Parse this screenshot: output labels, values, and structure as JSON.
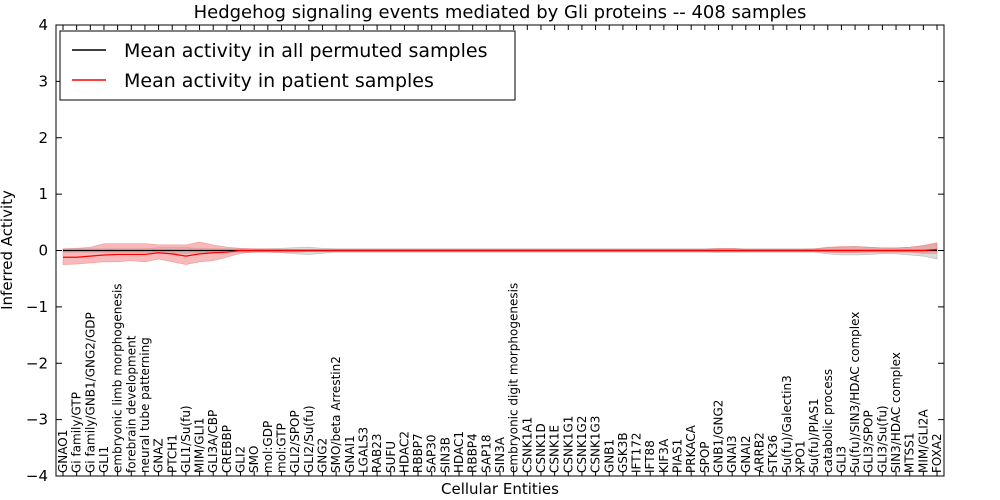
{
  "chart_data": {
    "type": "line",
    "title": "Hedgehog signaling events mediated by Gli proteins -- 408 samples",
    "xlabel": "Cellular Entities",
    "ylabel": "Inferred Activity",
    "ylim": [
      -4,
      4
    ],
    "yticks": [
      -4,
      -3,
      -2,
      -1,
      0,
      1,
      2,
      3,
      4
    ],
    "ytick_labels": [
      "−4",
      "−3",
      "−2",
      "−1",
      "0",
      "1",
      "2",
      "3",
      "4"
    ],
    "grid": false,
    "legend_position": "top-left",
    "categories": [
      "GNAO1",
      "Gi family/GTP",
      "Gi family/GNB1/GNG2/GDP",
      "GLI1",
      "embryonic limb morphogenesis",
      "forebrain development",
      "neural tube patterning",
      "GNAZ",
      "PTCH1",
      "GLI1/Su(fu)",
      "MIM/GLI1",
      "GLI3A/CBP",
      "CREBBP",
      "GLI2",
      "SMO",
      "mol:GDP",
      "mol:GTP",
      "GLI2/SPOP",
      "GLI2/Su(fu)",
      "GNG2",
      "SMO/beta Arrestin2",
      "GNAI1",
      "LGALS3",
      "RAB23",
      "SUFU",
      "HDAC2",
      "RBBP7",
      "SAP30",
      "SIN3B",
      "HDAC1",
      "RBBP4",
      "SAP18",
      "SIN3A",
      "embryonic digit morphogenesis",
      "CSNK1A1",
      "CSNK1D",
      "CSNK1E",
      "CSNK1G1",
      "CSNK1G2",
      "CSNK1G3",
      "GNB1",
      "GSK3B",
      "IFT172",
      "IFT88",
      "KIF3A",
      "PIAS1",
      "PRKACA",
      "SPOP",
      "GNB1/GNG2",
      "GNAI3",
      "GNAI2",
      "ARRB2",
      "STK36",
      "Su(fu)/Galectin3",
      "XPO1",
      "Su(fu)/PIAS1",
      "catabolic process",
      "GLI3",
      "Su(fu)/SIN3/HDAC complex",
      "GLI3/SPOP",
      "GLI3/Su(fu)",
      "SIN3/HDAC complex",
      "MTSS1",
      "MIM/GLI2A",
      "FOXA2"
    ],
    "series": [
      {
        "name": "Mean activity in all permuted samples",
        "color": "#000000",
        "values": [
          0.0,
          0.0,
          0.0,
          0.0,
          0.0,
          0.0,
          0.0,
          0.0,
          0.0,
          0.0,
          0.0,
          0.0,
          0.0,
          0.0,
          0.0,
          0.0,
          0.0,
          0.0,
          0.0,
          0.0,
          0.0,
          0.0,
          0.0,
          0.0,
          0.0,
          0.0,
          0.0,
          0.0,
          0.0,
          0.0,
          0.0,
          0.0,
          0.0,
          0.0,
          0.0,
          0.0,
          0.0,
          0.0,
          0.0,
          0.0,
          0.0,
          0.0,
          0.0,
          0.0,
          0.0,
          0.0,
          0.0,
          0.0,
          0.0,
          0.0,
          0.0,
          0.0,
          0.0,
          0.0,
          0.0,
          0.0,
          0.0,
          0.0,
          0.0,
          0.0,
          0.0,
          0.0,
          0.0,
          0.0,
          0.0
        ],
        "lower": [
          -0.03,
          -0.03,
          -0.03,
          -0.03,
          -0.03,
          -0.03,
          -0.03,
          -0.05,
          -0.05,
          -0.05,
          -0.04,
          -0.03,
          -0.03,
          -0.03,
          -0.03,
          -0.03,
          -0.04,
          -0.06,
          -0.07,
          -0.05,
          -0.03,
          -0.03,
          -0.03,
          -0.03,
          -0.03,
          -0.03,
          -0.03,
          -0.03,
          -0.03,
          -0.03,
          -0.03,
          -0.03,
          -0.03,
          -0.03,
          -0.03,
          -0.03,
          -0.03,
          -0.03,
          -0.03,
          -0.03,
          -0.03,
          -0.03,
          -0.03,
          -0.03,
          -0.03,
          -0.03,
          -0.03,
          -0.03,
          -0.04,
          -0.04,
          -0.03,
          -0.03,
          -0.03,
          -0.03,
          -0.03,
          -0.03,
          -0.06,
          -0.08,
          -0.08,
          -0.07,
          -0.06,
          -0.06,
          -0.08,
          -0.1,
          -0.15
        ],
        "upper": [
          0.03,
          0.03,
          0.03,
          0.03,
          0.03,
          0.03,
          0.03,
          0.05,
          0.05,
          0.05,
          0.04,
          0.03,
          0.03,
          0.03,
          0.03,
          0.03,
          0.04,
          0.05,
          0.06,
          0.04,
          0.03,
          0.03,
          0.03,
          0.03,
          0.03,
          0.03,
          0.03,
          0.03,
          0.03,
          0.03,
          0.03,
          0.03,
          0.03,
          0.03,
          0.03,
          0.03,
          0.03,
          0.03,
          0.03,
          0.03,
          0.03,
          0.03,
          0.03,
          0.03,
          0.03,
          0.03,
          0.03,
          0.03,
          0.04,
          0.04,
          0.03,
          0.03,
          0.03,
          0.03,
          0.03,
          0.03,
          0.05,
          0.06,
          0.07,
          0.06,
          0.05,
          0.05,
          0.06,
          0.08,
          0.12
        ]
      },
      {
        "name": "Mean activity in patient samples",
        "color": "#ff0000",
        "fill_color": "#f08080",
        "values": [
          -0.12,
          -0.12,
          -0.1,
          -0.08,
          -0.07,
          -0.07,
          -0.07,
          -0.04,
          -0.06,
          -0.1,
          -0.06,
          -0.04,
          -0.03,
          0.0,
          0.0,
          0.0,
          0.0,
          0.0,
          0.0,
          0.0,
          0.0,
          0.0,
          0.0,
          0.0,
          0.0,
          0.0,
          0.0,
          0.0,
          0.0,
          0.0,
          0.0,
          0.0,
          0.0,
          0.0,
          0.0,
          0.0,
          0.0,
          0.0,
          0.0,
          0.0,
          0.0,
          0.0,
          0.0,
          0.0,
          0.0,
          0.0,
          0.0,
          0.0,
          0.0,
          0.0,
          0.0,
          0.0,
          0.0,
          0.0,
          0.0,
          0.0,
          0.0,
          0.0,
          0.0,
          0.0,
          0.0,
          0.0,
          0.0,
          0.0,
          0.02
        ],
        "lower": [
          -0.25,
          -0.24,
          -0.22,
          -0.2,
          -0.2,
          -0.18,
          -0.2,
          -0.15,
          -0.2,
          -0.25,
          -0.2,
          -0.18,
          -0.12,
          -0.05,
          -0.03,
          -0.03,
          -0.03,
          -0.03,
          -0.02,
          -0.02,
          -0.02,
          -0.02,
          -0.02,
          -0.02,
          -0.02,
          -0.02,
          -0.02,
          -0.02,
          -0.02,
          -0.02,
          -0.02,
          -0.02,
          -0.02,
          -0.02,
          -0.02,
          -0.02,
          -0.02,
          -0.02,
          -0.02,
          -0.02,
          -0.02,
          -0.02,
          -0.02,
          -0.02,
          -0.02,
          -0.02,
          -0.02,
          -0.02,
          -0.02,
          -0.02,
          -0.02,
          -0.02,
          -0.02,
          -0.02,
          -0.02,
          -0.02,
          -0.03,
          -0.04,
          -0.04,
          -0.03,
          -0.03,
          -0.03,
          -0.03,
          -0.05,
          -0.05
        ],
        "upper": [
          0.03,
          0.04,
          0.06,
          0.12,
          0.12,
          0.12,
          0.12,
          0.1,
          0.1,
          0.1,
          0.15,
          0.1,
          0.06,
          0.04,
          0.03,
          0.03,
          0.02,
          0.02,
          0.02,
          0.02,
          0.02,
          0.02,
          0.02,
          0.02,
          0.02,
          0.02,
          0.02,
          0.02,
          0.02,
          0.02,
          0.02,
          0.02,
          0.02,
          0.02,
          0.02,
          0.02,
          0.02,
          0.02,
          0.02,
          0.02,
          0.02,
          0.02,
          0.02,
          0.02,
          0.02,
          0.02,
          0.02,
          0.02,
          0.04,
          0.04,
          0.02,
          0.02,
          0.02,
          0.02,
          0.02,
          0.03,
          0.06,
          0.07,
          0.07,
          0.06,
          0.04,
          0.04,
          0.06,
          0.09,
          0.14
        ]
      }
    ]
  }
}
